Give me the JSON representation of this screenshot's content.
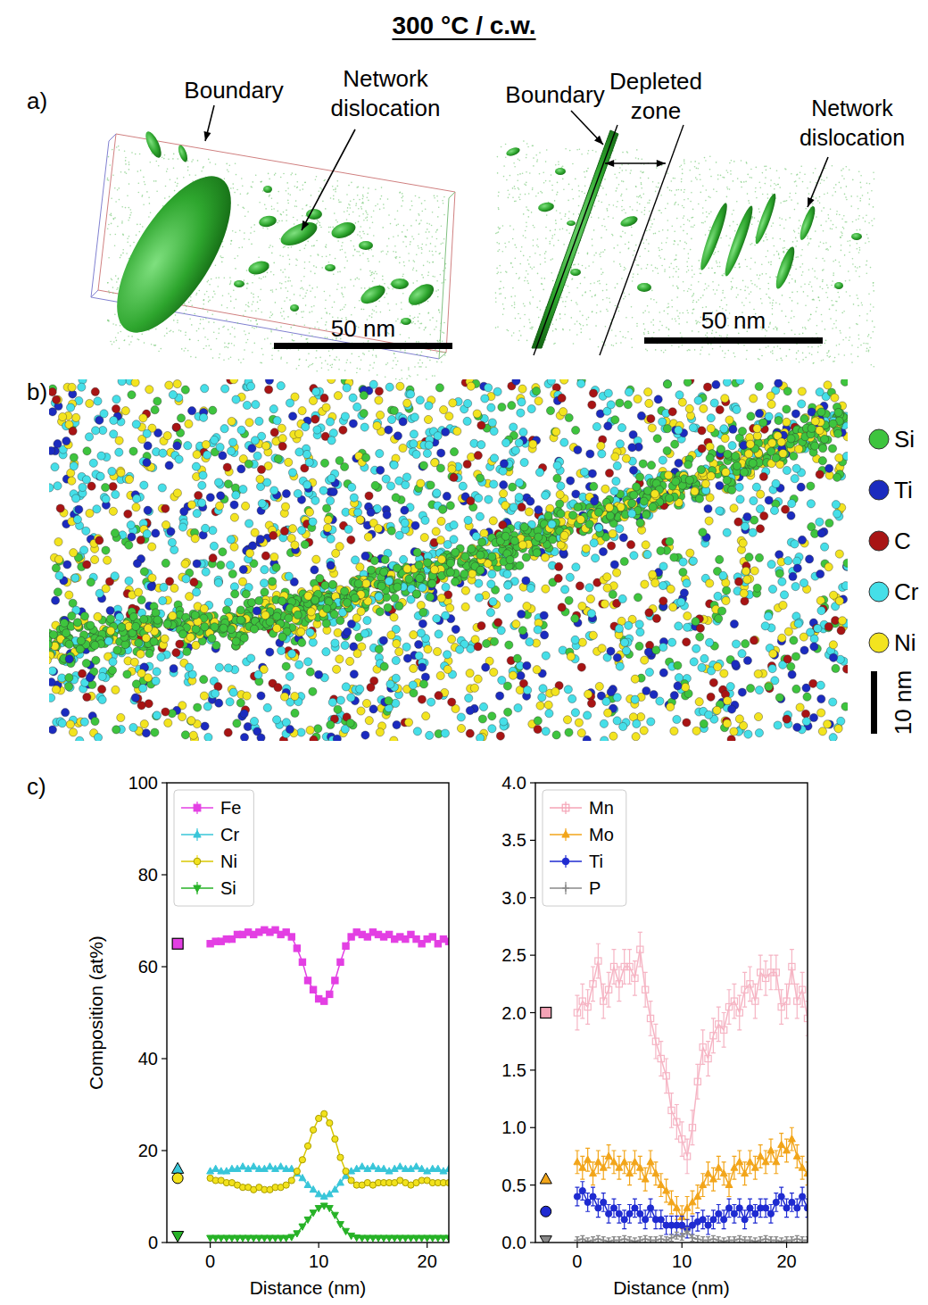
{
  "title": "300 °C / c.w.",
  "panel_a": {
    "letter": "a)",
    "left": {
      "labels": [
        "Boundary",
        "Network dislocation"
      ],
      "scale_bar": "50 nm"
    },
    "right": {
      "labels": [
        "Boundary",
        "Depleted zone",
        "Network dislocation"
      ],
      "scale_bar": "50 nm"
    }
  },
  "panel_b": {
    "letter": "b)",
    "legend": [
      {
        "name": "Si",
        "color": "#3ec43e"
      },
      {
        "name": "Ti",
        "color": "#1b2bbf"
      },
      {
        "name": "C",
        "color": "#a81414"
      },
      {
        "name": "Cr",
        "color": "#45dfe8"
      },
      {
        "name": "Ni",
        "color": "#f3e41f"
      }
    ],
    "scale_bar": "10 nm"
  },
  "panel_c": {
    "letter": "c)"
  },
  "chart_data": [
    {
      "type": "line",
      "x_label": "Distance (nm)",
      "y_label": "Composition (at%)",
      "x": [
        0,
        0.5,
        1,
        1.5,
        2,
        2.5,
        3,
        3.5,
        4,
        4.5,
        5,
        5.5,
        6,
        6.5,
        7,
        7.5,
        8,
        8.5,
        9,
        9.5,
        10,
        10.5,
        11,
        11.5,
        12,
        12.5,
        13,
        13.5,
        14,
        14.5,
        15,
        15.5,
        16,
        16.5,
        17,
        17.5,
        18,
        18.5,
        19,
        19.5,
        20,
        20.5,
        21,
        21.5,
        22
      ],
      "xlim": [
        -4,
        22
      ],
      "xticks": [
        0,
        10,
        20
      ],
      "ylim": [
        0,
        100
      ],
      "yticks": [
        0,
        20,
        40,
        60,
        80,
        100
      ],
      "legend": "upper left",
      "bulk_x": -3,
      "series": [
        {
          "name": "Fe",
          "color": "#e33fe3",
          "marker": "square",
          "bulk": 65,
          "values": [
            65,
            65.5,
            65.5,
            66,
            66,
            67,
            67,
            67.5,
            67,
            67.5,
            68,
            67.5,
            68,
            67,
            67.5,
            66.5,
            64,
            61,
            57,
            55,
            53,
            52.5,
            54,
            57,
            61,
            64.5,
            66.5,
            67.5,
            67,
            66.5,
            67.5,
            67,
            66.5,
            67,
            66,
            66.5,
            66,
            67,
            66,
            65,
            66,
            66.5,
            65,
            66,
            65.5
          ]
        },
        {
          "name": "Cr",
          "color": "#39c6d9",
          "marker": "triangle-up",
          "bulk": 16,
          "values": [
            15.5,
            16,
            15.5,
            15.5,
            16,
            16,
            16.5,
            16,
            16.5,
            16,
            16,
            16.5,
            16,
            16.5,
            16,
            16,
            15,
            14,
            12.5,
            11.5,
            10.5,
            10,
            10.5,
            11.5,
            13,
            14.5,
            15.5,
            16,
            16.5,
            16,
            16.5,
            16,
            16,
            15.5,
            16,
            16.5,
            16,
            16,
            16.5,
            16,
            15.5,
            16,
            16,
            15.5,
            16
          ]
        },
        {
          "name": "Ni",
          "color": "#f2e21c",
          "marker": "circle",
          "bulk": 14,
          "values": [
            14,
            13.5,
            13.5,
            13,
            13,
            12.5,
            12,
            12,
            11.5,
            12,
            11.5,
            11.5,
            12,
            12,
            12.5,
            13.5,
            15.5,
            18,
            21,
            24.5,
            27,
            28,
            26,
            22.5,
            18.5,
            15.5,
            13.5,
            12.5,
            12.5,
            13,
            12.5,
            13,
            13,
            13,
            13,
            13.5,
            13,
            12.5,
            13,
            13.5,
            13.5,
            13,
            13,
            13,
            13
          ]
        },
        {
          "name": "Si",
          "color": "#27b227",
          "marker": "triangle-down",
          "bulk": 1.5,
          "values": [
            1,
            1,
            1,
            1,
            1,
            1,
            1,
            1,
            1,
            1,
            1,
            1,
            1,
            1,
            1,
            1.2,
            2,
            3.5,
            5,
            6.5,
            7.5,
            8,
            7.5,
            6,
            4,
            2.5,
            1.5,
            1.1,
            1,
            1,
            1,
            1,
            1,
            1,
            1,
            1,
            1,
            1,
            1,
            1,
            1,
            1,
            1,
            1,
            1
          ]
        }
      ]
    },
    {
      "type": "line",
      "x_label": "Distance (nm)",
      "x": [
        0,
        0.5,
        1,
        1.5,
        2,
        2.5,
        3,
        3.5,
        4,
        4.5,
        5,
        5.5,
        6,
        6.5,
        7,
        7.5,
        8,
        8.5,
        9,
        9.5,
        10,
        10.5,
        11,
        11.5,
        12,
        12.5,
        13,
        13.5,
        14,
        14.5,
        15,
        15.5,
        16,
        16.5,
        17,
        17.5,
        18,
        18.5,
        19,
        19.5,
        20,
        20.5,
        21,
        21.5,
        22
      ],
      "xlim": [
        -4,
        22
      ],
      "xticks": [
        0,
        10,
        20
      ],
      "ylim": [
        0,
        4
      ],
      "yticks": [
        {
          "value": 0,
          "label": "0.0"
        },
        0.5,
        {
          "value": 1,
          "label": "1.0"
        },
        1.5,
        {
          "value": 2,
          "label": "2.0"
        },
        2.5,
        {
          "value": 3,
          "label": "3.0"
        },
        3.5,
        {
          "value": 4,
          "label": "4.0"
        }
      ],
      "legend": "upper left",
      "bulk_x": -3,
      "series": [
        {
          "name": "Mn",
          "color": "#f4a3b6",
          "marker": "open-square",
          "bulk": 2,
          "values": [
            2.0,
            2.1,
            2.05,
            2.25,
            2.45,
            2.1,
            2.2,
            2.4,
            2.25,
            2.4,
            2.4,
            2.3,
            2.55,
            2.2,
            1.95,
            1.75,
            1.6,
            1.45,
            1.15,
            1.05,
            0.9,
            0.75,
            1.0,
            1.4,
            1.7,
            1.6,
            1.8,
            1.9,
            1.85,
            2.05,
            2.1,
            2.0,
            2.2,
            2.25,
            2.1,
            2.35,
            2.3,
            2.35,
            2.35,
            2.05,
            2.1,
            2.4,
            2.1,
            2.2,
            1.95
          ],
          "errors": [
            0.15,
            0.15,
            0.15,
            0.15,
            0.15,
            0.15,
            0.15,
            0.15,
            0.15,
            0.15,
            0.15,
            0.15,
            0.15,
            0.15,
            0.15,
            0.15,
            0.15,
            0.15,
            0.15,
            0.15,
            0.15,
            0.15,
            0.15,
            0.15,
            0.15,
            0.15,
            0.15,
            0.15,
            0.15,
            0.15,
            0.15,
            0.15,
            0.15,
            0.15,
            0.15,
            0.15,
            0.15,
            0.15,
            0.15,
            0.15,
            0.15,
            0.15,
            0.15,
            0.15,
            0.15
          ]
        },
        {
          "name": "Mo",
          "color": "#f2a51a",
          "marker": "triangle-up",
          "bulk": 0.55,
          "values": [
            0.7,
            0.65,
            0.72,
            0.6,
            0.7,
            0.65,
            0.75,
            0.7,
            0.65,
            0.7,
            0.6,
            0.7,
            0.65,
            0.55,
            0.7,
            0.6,
            0.5,
            0.45,
            0.35,
            0.3,
            0.22,
            0.3,
            0.35,
            0.4,
            0.5,
            0.6,
            0.55,
            0.65,
            0.6,
            0.5,
            0.65,
            0.7,
            0.6,
            0.7,
            0.65,
            0.75,
            0.7,
            0.8,
            0.7,
            0.85,
            0.8,
            0.9,
            0.75,
            0.65,
            0.6
          ],
          "errors": [
            0.1,
            0.1,
            0.1,
            0.1,
            0.1,
            0.1,
            0.1,
            0.1,
            0.1,
            0.1,
            0.1,
            0.1,
            0.1,
            0.1,
            0.1,
            0.1,
            0.1,
            0.1,
            0.1,
            0.1,
            0.1,
            0.1,
            0.1,
            0.1,
            0.1,
            0.1,
            0.1,
            0.1,
            0.1,
            0.1,
            0.1,
            0.1,
            0.1,
            0.1,
            0.1,
            0.1,
            0.1,
            0.1,
            0.1,
            0.1,
            0.1,
            0.1,
            0.1,
            0.1,
            0.1
          ]
        },
        {
          "name": "Ti",
          "color": "#1f2bd1",
          "marker": "circle",
          "bulk": 0.27,
          "values": [
            0.4,
            0.45,
            0.35,
            0.4,
            0.3,
            0.35,
            0.25,
            0.3,
            0.25,
            0.2,
            0.25,
            0.3,
            0.25,
            0.2,
            0.3,
            0.2,
            0.2,
            0.15,
            0.15,
            0.15,
            0.15,
            0.12,
            0.15,
            0.18,
            0.2,
            0.15,
            0.2,
            0.25,
            0.2,
            0.3,
            0.25,
            0.3,
            0.2,
            0.3,
            0.25,
            0.3,
            0.3,
            0.25,
            0.35,
            0.4,
            0.3,
            0.35,
            0.3,
            0.4,
            0.3
          ],
          "errors": [
            0.08,
            0.08,
            0.08,
            0.08,
            0.08,
            0.08,
            0.08,
            0.08,
            0.08,
            0.08,
            0.08,
            0.08,
            0.08,
            0.08,
            0.08,
            0.08,
            0.08,
            0.08,
            0.08,
            0.08,
            0.08,
            0.08,
            0.08,
            0.08,
            0.08,
            0.08,
            0.08,
            0.08,
            0.08,
            0.08,
            0.08,
            0.08,
            0.08,
            0.08,
            0.08,
            0.08,
            0.08,
            0.08,
            0.08,
            0.08,
            0.08,
            0.08,
            0.08,
            0.08,
            0.08
          ]
        },
        {
          "name": "P",
          "color": "#8a8a8a",
          "marker": "plus",
          "bulk": 0.02,
          "values": [
            0.02,
            0.03,
            0.01,
            0.02,
            0.03,
            0.02,
            0.01,
            0.02,
            0.02,
            0.03,
            0.02,
            0.01,
            0.02,
            0.03,
            0.02,
            0.02,
            0.03,
            0.02,
            0.04,
            0.06,
            0.05,
            0.1,
            0.04,
            0.03,
            0.02,
            0.02,
            0.03,
            0.02,
            0.01,
            0.02,
            0.02,
            0.03,
            0.02,
            0.02,
            0.01,
            0.02,
            0.03,
            0.02,
            0.02,
            0.01,
            0.02,
            0.02,
            0.03,
            0.02,
            0.02
          ],
          "errors": [
            0.03,
            0.03,
            0.03,
            0.03,
            0.03,
            0.03,
            0.03,
            0.03,
            0.03,
            0.03,
            0.03,
            0.03,
            0.03,
            0.03,
            0.03,
            0.03,
            0.03,
            0.03,
            0.03,
            0.03,
            0.03,
            0.03,
            0.03,
            0.03,
            0.03,
            0.03,
            0.03,
            0.03,
            0.03,
            0.03,
            0.03,
            0.03,
            0.03,
            0.03,
            0.03,
            0.03,
            0.03,
            0.03,
            0.03,
            0.03,
            0.03,
            0.03,
            0.03,
            0.03,
            0.03
          ]
        }
      ]
    }
  ]
}
